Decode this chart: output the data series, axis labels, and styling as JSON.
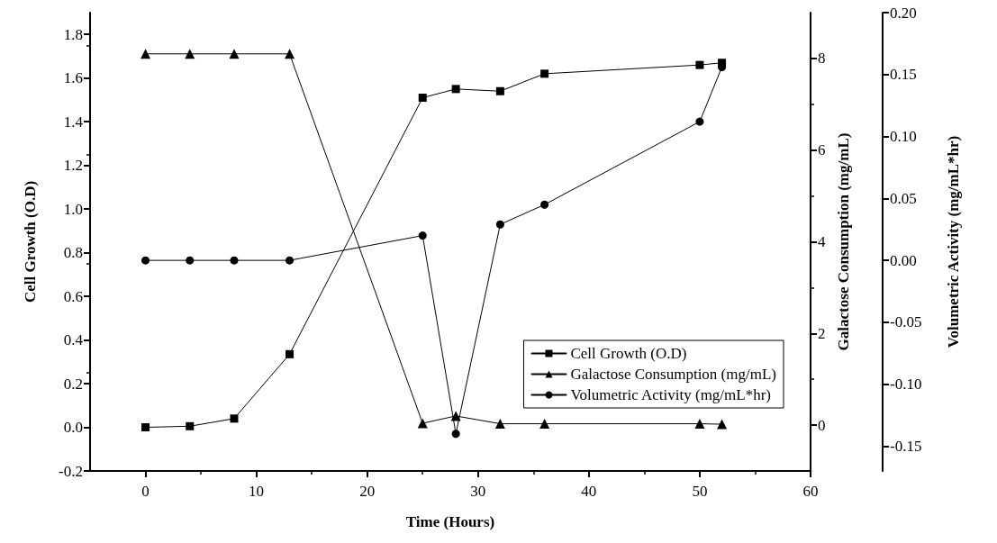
{
  "chart_data": {
    "type": "line",
    "xlabel": "Time (Hours)",
    "ylabel": "Cell Growth (O.D)",
    "y2label": "Galactose Consumption (mg/mL)",
    "y3label": "Volumetric Activity (mg/mL*hr)",
    "xlim": [
      -5,
      60
    ],
    "xticks": [
      0,
      10,
      20,
      30,
      40,
      50,
      60
    ],
    "ylim": [
      -0.2,
      1.9
    ],
    "yticks": [
      -0.2,
      {
        "value": 0,
        "label": "0.0"
      },
      0.2,
      0.4,
      0.6,
      0.8,
      {
        "value": 1,
        "label": "1.0"
      },
      1.2,
      1.4,
      1.6,
      1.8
    ],
    "y2lim": [
      -1,
      9
    ],
    "y2ticks": [
      0,
      2,
      4,
      6,
      8
    ],
    "y3lim": [
      -0.17,
      0.2
    ],
    "y3ticks": [
      -0.15,
      {
        "value": -0.1,
        "label": "-0.10"
      },
      -0.05,
      {
        "value": 0,
        "label": "0.00"
      },
      0.05,
      {
        "value": 0.1,
        "label": "0.10"
      },
      0.15,
      {
        "value": 0.2,
        "label": "0.20"
      }
    ],
    "grid": false,
    "legend": "bottom right",
    "line_style": "solid",
    "x": [
      0,
      4,
      8,
      13,
      25,
      28,
      32,
      36,
      50,
      52
    ],
    "series": [
      {
        "name": "Cell Growth (O.D)",
        "color": "#000000",
        "marker": "square",
        "values": [
          0.0,
          0.005,
          0.04,
          0.335,
          1.51,
          1.55,
          1.54,
          1.62,
          1.66,
          1.67
        ]
      },
      {
        "name": "Galactose Consumption (mg/mL)",
        "color": "#000000",
        "marker": "triangle",
        "axis": "y2",
        "values": [
          8.1,
          8.1,
          8.1,
          8.1,
          0.04,
          0.2,
          0.03,
          0.03,
          0.03,
          0.02
        ]
      },
      {
        "name": "Volumetric Activity (mg/mL*hr)",
        "color": "#000000",
        "marker": "circle",
        "axis": "y3",
        "values": [
          0.0,
          0.0,
          0.0,
          0.0,
          0.02,
          -0.14,
          0.029,
          0.045,
          0.112,
          0.156
        ]
      }
    ]
  }
}
